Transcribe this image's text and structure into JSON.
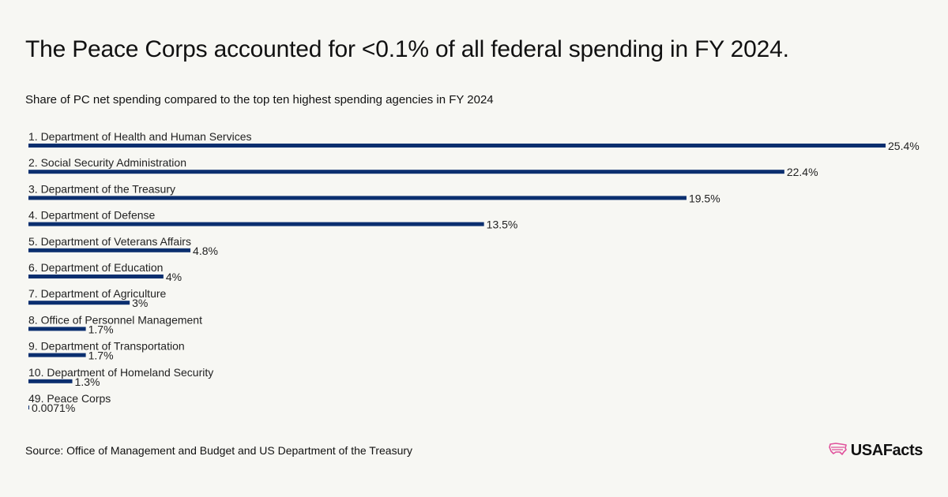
{
  "title": "The Peace Corps accounted for <0.1% of all federal spending in FY 2024.",
  "subtitle": "Share of PC net spending compared to the top ten highest spending agencies in FY 2024",
  "source": "Source: Office of Management and Budget and US Department of the Treasury",
  "logo": {
    "text": "USAFacts",
    "icon": "us-map-icon"
  },
  "colors": {
    "bar": "#0b2f6f",
    "background": "#f7f7f3",
    "logo_icon": "#e0529c"
  },
  "chart_data": {
    "type": "bar",
    "orientation": "horizontal",
    "categories": [
      "1. Department of Health and Human Services",
      "2. Social Security Administration",
      "3. Department of the Treasury",
      "4. Department of Defense",
      "5. Department of Veterans Affairs",
      "6. Department of Education",
      "7. Department of Agriculture",
      "8. Office of Personnel Management",
      "9. Department of Transportation",
      "10. Department of Homeland Security",
      "49. Peace Corps"
    ],
    "values": [
      25.4,
      22.4,
      19.5,
      13.5,
      4.8,
      4,
      3,
      1.7,
      1.7,
      1.3,
      0.0071
    ],
    "value_labels": [
      "25.4%",
      "22.4%",
      "19.5%",
      "13.5%",
      "4.8%",
      "4%",
      "3%",
      "1.7%",
      "1.7%",
      "1.3%",
      "0.0071%"
    ],
    "unit": "%",
    "xlim": [
      0,
      25.4
    ],
    "grid": false,
    "legend": "none"
  }
}
